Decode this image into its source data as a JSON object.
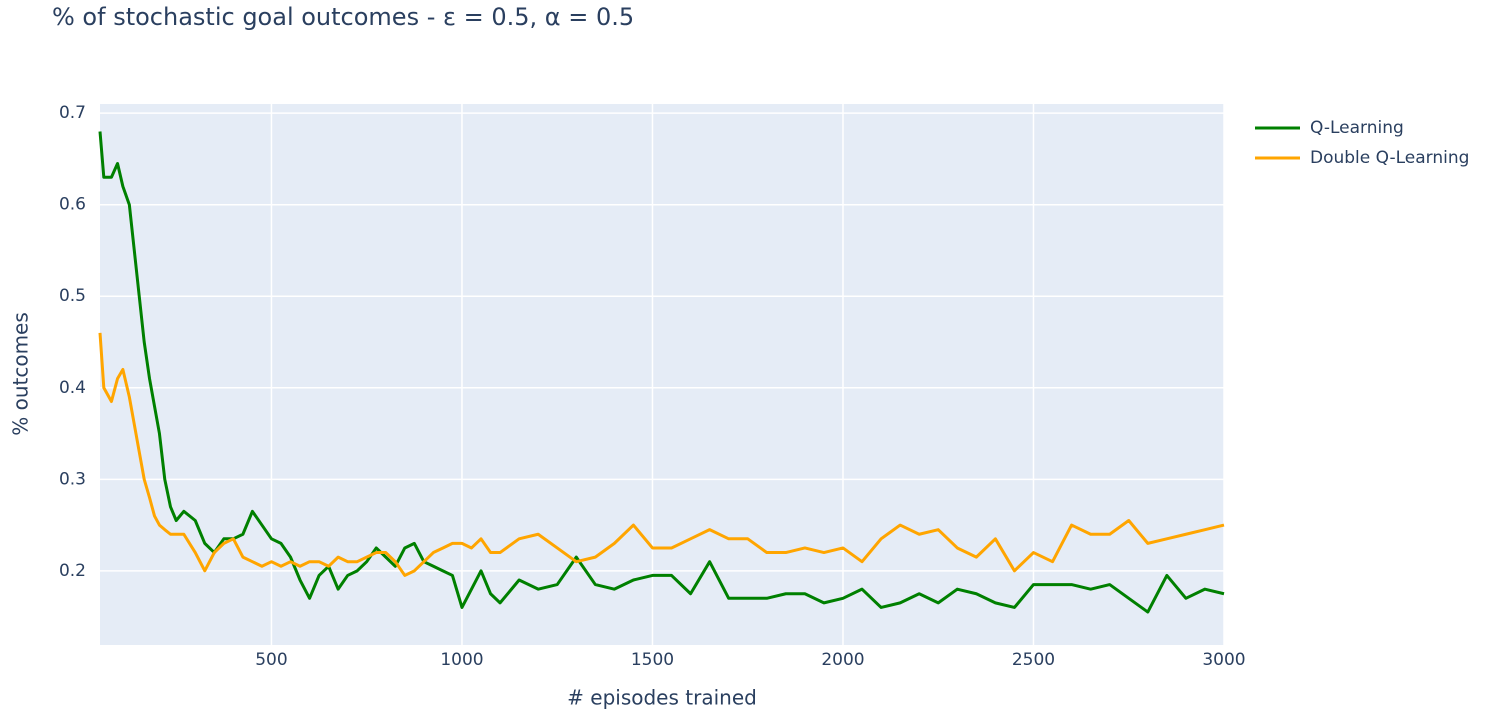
{
  "chart_data": {
    "type": "line",
    "title": "% of stochastic goal outcomes - ε = 0.5, α = 0.5",
    "x_label": "# episodes trained",
    "y_label": "% outcomes",
    "x": [
      50,
      60,
      80,
      96,
      110,
      127,
      140,
      153,
      166,
      180,
      193,
      206,
      220,
      235,
      250,
      270,
      300,
      325,
      350,
      375,
      400,
      425,
      450,
      475,
      500,
      525,
      550,
      575,
      600,
      625,
      650,
      675,
      700,
      725,
      750,
      775,
      800,
      825,
      850,
      875,
      900,
      925,
      950,
      975,
      1000,
      1025,
      1050,
      1075,
      1100,
      1150,
      1200,
      1250,
      1300,
      1350,
      1400,
      1450,
      1500,
      1550,
      1600,
      1650,
      1700,
      1750,
      1800,
      1850,
      1900,
      1950,
      2000,
      2050,
      2100,
      2150,
      2200,
      2250,
      2300,
      2350,
      2400,
      2450,
      2500,
      2550,
      2600,
      2650,
      2700,
      2750,
      2800,
      2850,
      2900,
      2950,
      3000
    ],
    "series": [
      {
        "name": "Q-Learning",
        "color": "#008000",
        "values": [
          0.68,
          0.63,
          0.63,
          0.645,
          0.62,
          0.6,
          0.55,
          0.5,
          0.45,
          0.41,
          0.38,
          0.35,
          0.3,
          0.27,
          0.255,
          0.265,
          0.255,
          0.23,
          0.22,
          0.235,
          0.235,
          0.24,
          0.265,
          0.25,
          0.235,
          0.23,
          0.215,
          0.19,
          0.17,
          0.195,
          0.205,
          0.18,
          0.195,
          0.2,
          0.21,
          0.225,
          0.215,
          0.205,
          0.225,
          0.23,
          0.21,
          0.205,
          0.2,
          0.195,
          0.16,
          0.18,
          0.2,
          0.175,
          0.165,
          0.19,
          0.18,
          0.185,
          0.215,
          0.185,
          0.18,
          0.19,
          0.195,
          0.195,
          0.175,
          0.21,
          0.17,
          0.17,
          0.17,
          0.175,
          0.175,
          0.165,
          0.17,
          0.18,
          0.16,
          0.165,
          0.175,
          0.165,
          0.18,
          0.175,
          0.165,
          0.16,
          0.185,
          0.185,
          0.185,
          0.18,
          0.185,
          0.17,
          0.155,
          0.195,
          0.17,
          0.18,
          0.175
        ]
      },
      {
        "name": "Double Q-Learning",
        "color": "#ffa500",
        "values": [
          0.46,
          0.4,
          0.385,
          0.41,
          0.42,
          0.39,
          0.36,
          0.33,
          0.3,
          0.28,
          0.26,
          0.25,
          0.245,
          0.24,
          0.24,
          0.24,
          0.22,
          0.2,
          0.22,
          0.23,
          0.235,
          0.215,
          0.21,
          0.205,
          0.21,
          0.205,
          0.21,
          0.205,
          0.21,
          0.21,
          0.205,
          0.215,
          0.21,
          0.21,
          0.215,
          0.22,
          0.22,
          0.21,
          0.195,
          0.2,
          0.21,
          0.22,
          0.225,
          0.23,
          0.23,
          0.225,
          0.235,
          0.22,
          0.22,
          0.235,
          0.24,
          0.225,
          0.21,
          0.215,
          0.23,
          0.25,
          0.225,
          0.225,
          0.235,
          0.245,
          0.235,
          0.235,
          0.22,
          0.22,
          0.225,
          0.22,
          0.225,
          0.21,
          0.235,
          0.25,
          0.24,
          0.245,
          0.225,
          0.215,
          0.235,
          0.2,
          0.22,
          0.21,
          0.25,
          0.24,
          0.24,
          0.255,
          0.23,
          0.235,
          0.24,
          0.245,
          0.25
        ]
      }
    ],
    "xlim": [
      50,
      3000
    ],
    "ylim": [
      0.119,
      0.71
    ],
    "xticks": [
      500,
      1000,
      1500,
      2000,
      2500,
      3000
    ],
    "yticks": [
      0.2,
      0.3,
      0.4,
      0.5,
      0.6,
      0.7
    ],
    "grid": true,
    "legend": "top-right"
  }
}
